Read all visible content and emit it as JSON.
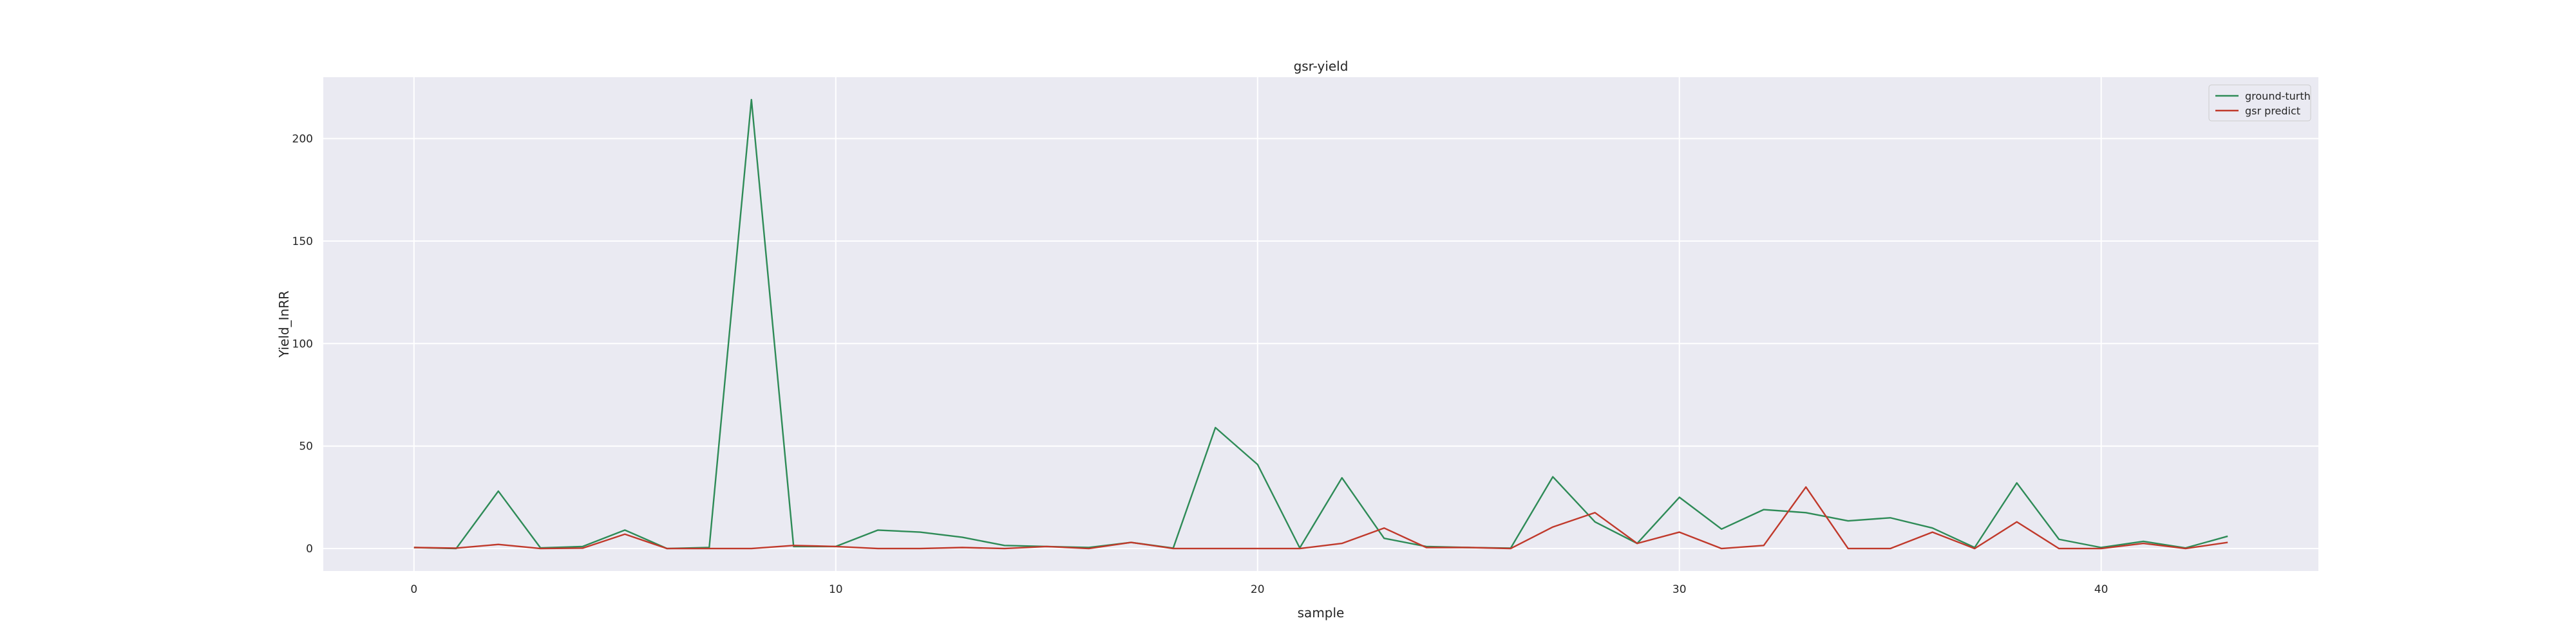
{
  "chart_data": {
    "type": "line",
    "title": "gsr-yield",
    "xlabel": "sample",
    "ylabel": "Yield_InRR",
    "xlim": [
      -2.15,
      45.15
    ],
    "ylim": [
      -10.95,
      229.95
    ],
    "xticks": [
      0,
      10,
      20,
      30,
      40
    ],
    "yticks": [
      0,
      50,
      100,
      150,
      200
    ],
    "grid": true,
    "legend_position": "top-right",
    "background_color": "#eaeaf2",
    "x": [
      0,
      1,
      2,
      3,
      4,
      5,
      6,
      7,
      8,
      9,
      10,
      11,
      12,
      13,
      14,
      15,
      16,
      17,
      18,
      19,
      20,
      21,
      22,
      23,
      24,
      25,
      26,
      27,
      28,
      29,
      30,
      31,
      32,
      33,
      34,
      35,
      36,
      37,
      38,
      39,
      40,
      41,
      42,
      43
    ],
    "series": [
      {
        "name": "ground-turth",
        "color": "#2e8b57",
        "values": [
          0.5,
          0,
          28,
          0.3,
          1,
          9,
          0,
          0.5,
          219,
          1,
          1,
          9,
          8,
          5.5,
          1.5,
          1,
          0.5,
          3,
          0.2,
          59,
          41,
          0.3,
          34.5,
          5,
          1,
          0.5,
          0.2,
          35,
          13,
          2.5,
          25,
          9.5,
          19,
          17.5,
          13.5,
          15,
          10,
          0.5,
          32,
          4.5,
          0.5,
          3.5,
          0.3,
          6
        ]
      },
      {
        "name": "gsr predict",
        "color": "#c0392b",
        "values": [
          0.5,
          0.2,
          2,
          0,
          0.2,
          7,
          0,
          0,
          0,
          1.5,
          1,
          0,
          0,
          0.5,
          0,
          1,
          0,
          3,
          0,
          0,
          0,
          0,
          2.5,
          10,
          0.5,
          0.5,
          0,
          10.5,
          17.5,
          2.5,
          8,
          0,
          1.5,
          30,
          0,
          0,
          8,
          0,
          13,
          0,
          0,
          2.5,
          0,
          3
        ]
      }
    ]
  }
}
